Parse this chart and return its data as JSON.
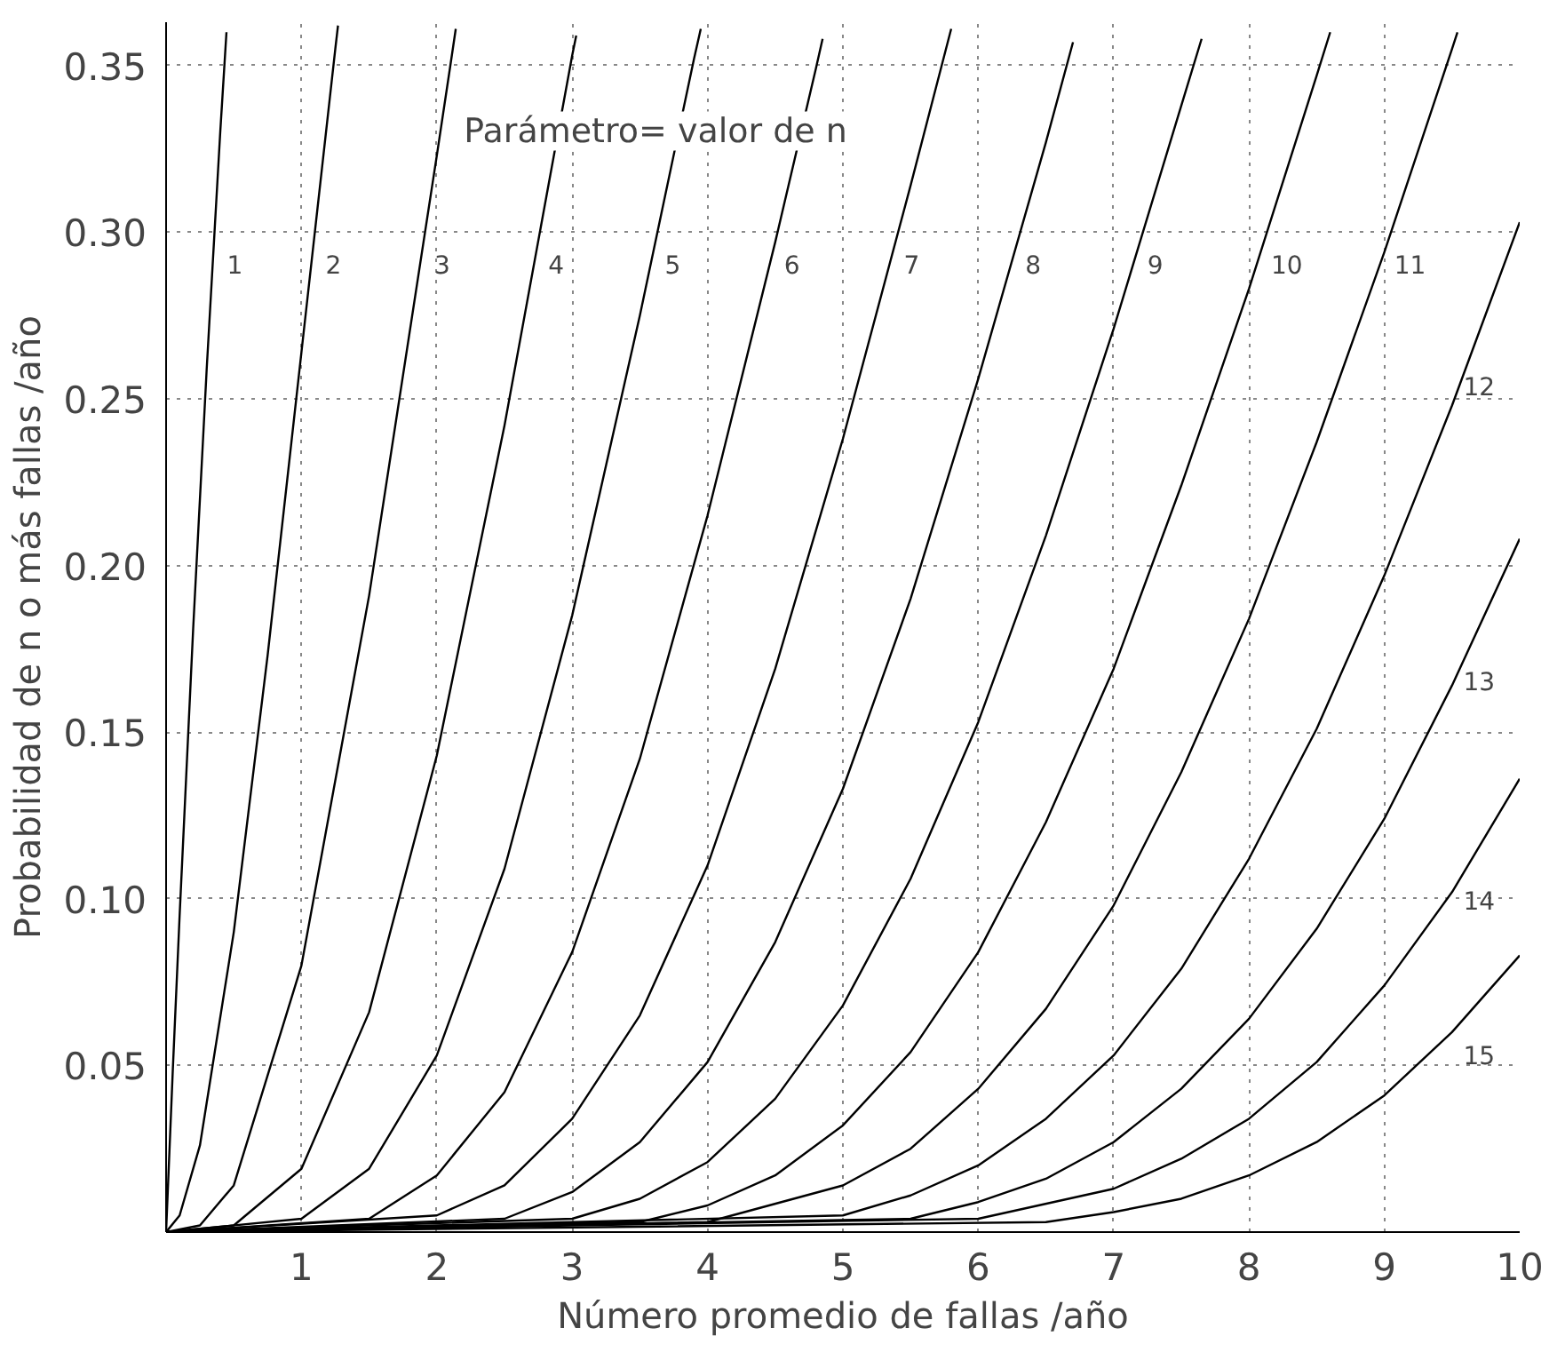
{
  "chart_data": {
    "type": "line",
    "xlabel": "Número promedio de fallas /año",
    "ylabel": "Probabilidad de n o más fallas /año",
    "xlim": [
      0,
      10
    ],
    "ylim": [
      0,
      0.363
    ],
    "xticks": [
      1,
      2,
      3,
      4,
      5,
      6,
      7,
      8,
      9,
      10
    ],
    "yticks": [
      {
        "value": 0.05,
        "label": "0.05"
      },
      {
        "value": 0.1,
        "label": "0.10"
      },
      {
        "value": 0.15,
        "label": "0.15"
      },
      {
        "value": 0.2,
        "label": "0.20"
      },
      {
        "value": 0.25,
        "label": "0.25"
      },
      {
        "value": 0.3,
        "label": "0.30"
      },
      {
        "value": 0.35,
        "label": "0.35"
      }
    ],
    "grid": true,
    "marker": "none",
    "line_style": "solid",
    "series": [
      {
        "name": "1",
        "color": "#000000",
        "x": [
          0,
          0.05,
          0.1,
          0.2,
          0.3,
          0.4,
          0.446
        ],
        "values": [
          0,
          0.049,
          0.095,
          0.181,
          0.259,
          0.33,
          0.36
        ]
      },
      {
        "name": "2",
        "color": "#000000",
        "x": [
          0,
          0.1,
          0.25,
          0.5,
          0.75,
          1.0,
          1.25,
          1.27
        ],
        "values": [
          0,
          0.005,
          0.026,
          0.09,
          0.173,
          0.264,
          0.355,
          0.362
        ]
      },
      {
        "name": "3",
        "color": "#000000",
        "x": [
          0,
          0.25,
          0.5,
          1,
          1.5,
          2,
          2.1,
          2.14
        ],
        "values": [
          0,
          0.002,
          0.014,
          0.08,
          0.191,
          0.323,
          0.35,
          0.361
        ]
      },
      {
        "name": "4",
        "color": "#000000",
        "x": [
          0,
          0.5,
          1,
          1.5,
          2,
          2.5,
          3,
          3.03
        ],
        "values": [
          0,
          0.002,
          0.019,
          0.066,
          0.143,
          0.242,
          0.353,
          0.359
        ]
      },
      {
        "name": "5",
        "color": "#000000",
        "x": [
          0,
          1,
          1.5,
          2,
          2.5,
          3,
          3.5,
          3.9,
          3.95
        ],
        "values": [
          0,
          0.004,
          0.019,
          0.053,
          0.109,
          0.185,
          0.275,
          0.352,
          0.361
        ]
      },
      {
        "name": "6",
        "color": "#000000",
        "x": [
          0,
          1.5,
          2,
          2.5,
          3,
          3.5,
          4,
          4.5,
          4.8,
          4.85
        ],
        "values": [
          0,
          0.004,
          0.017,
          0.042,
          0.084,
          0.142,
          0.215,
          0.297,
          0.349,
          0.358
        ]
      },
      {
        "name": "7",
        "color": "#000000",
        "x": [
          0,
          2,
          2.5,
          3,
          3.5,
          4,
          4.5,
          5,
          5.5,
          5.8
        ],
        "values": [
          0,
          0.005,
          0.014,
          0.034,
          0.065,
          0.11,
          0.169,
          0.238,
          0.314,
          0.361
        ]
      },
      {
        "name": "8",
        "color": "#000000",
        "x": [
          0,
          2.5,
          3,
          3.5,
          4,
          4.5,
          5,
          5.5,
          6,
          6.5,
          6.7
        ],
        "values": [
          0,
          0.004,
          0.012,
          0.027,
          0.051,
          0.087,
          0.133,
          0.19,
          0.256,
          0.327,
          0.357
        ]
      },
      {
        "name": "9",
        "color": "#000000",
        "x": [
          0,
          3,
          3.5,
          4,
          4.5,
          5,
          5.5,
          6,
          6.5,
          7,
          7.5,
          7.65
        ],
        "values": [
          0,
          0.004,
          0.01,
          0.021,
          0.04,
          0.068,
          0.106,
          0.153,
          0.209,
          0.271,
          0.338,
          0.358
        ]
      },
      {
        "name": "10",
        "color": "#000000",
        "x": [
          0,
          3.5,
          4,
          4.5,
          5,
          5.5,
          6,
          6.5,
          7,
          7.5,
          8,
          8.5,
          8.6
        ],
        "values": [
          0,
          0.003,
          0.008,
          0.017,
          0.032,
          0.054,
          0.084,
          0.123,
          0.169,
          0.224,
          0.283,
          0.347,
          0.36
        ]
      },
      {
        "name": "11",
        "color": "#000000",
        "x": [
          0,
          4,
          5,
          5.5,
          6,
          6.5,
          7,
          7.5,
          8,
          8.5,
          9,
          9.5,
          9.54
        ],
        "values": [
          0,
          0.003,
          0.014,
          0.025,
          0.043,
          0.067,
          0.098,
          0.138,
          0.184,
          0.237,
          0.294,
          0.355,
          0.36
        ]
      },
      {
        "name": "12",
        "color": "#000000",
        "x": [
          0,
          5,
          5.5,
          6,
          6.5,
          7,
          7.5,
          8,
          8.5,
          9,
          9.5,
          10
        ],
        "values": [
          0,
          0.005,
          0.011,
          0.02,
          0.034,
          0.053,
          0.079,
          0.112,
          0.151,
          0.197,
          0.248,
          0.303
        ]
      },
      {
        "name": "13",
        "color": "#000000",
        "x": [
          0,
          5.5,
          6,
          6.5,
          7,
          7.5,
          8,
          8.5,
          9,
          9.5,
          10
        ],
        "values": [
          0,
          0.004,
          0.009,
          0.016,
          0.027,
          0.043,
          0.064,
          0.091,
          0.124,
          0.164,
          0.208
        ]
      },
      {
        "name": "14",
        "color": "#000000",
        "x": [
          0,
          6,
          7,
          7.5,
          8,
          8.5,
          9,
          9.5,
          10
        ],
        "values": [
          0,
          0.004,
          0.013,
          0.022,
          0.034,
          0.051,
          0.074,
          0.102,
          0.136
        ]
      },
      {
        "name": "15",
        "color": "#000000",
        "x": [
          0,
          6.5,
          7,
          7.5,
          8,
          8.5,
          9,
          9.5,
          10
        ],
        "values": [
          0,
          0.003,
          0.006,
          0.01,
          0.017,
          0.027,
          0.041,
          0.06,
          0.083
        ]
      }
    ],
    "annotations": [
      "Parámetro= valor de n"
    ]
  }
}
